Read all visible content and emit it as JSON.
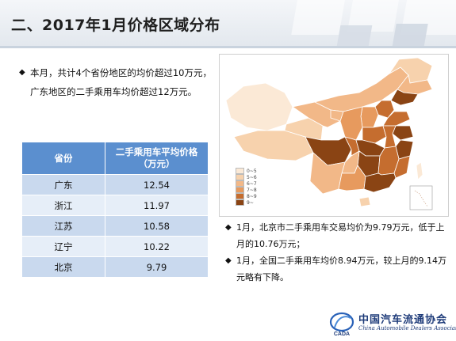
{
  "header": {
    "title": "二、2017年1月价格区域分布"
  },
  "left_bullet": "本月，共计4个省份地区的均价超过10万元，广东地区的二手乘用车均价超过12万元。",
  "table": {
    "headers": [
      "省份",
      "二手乘用车平均价格（万元）"
    ],
    "rows": [
      {
        "province": "广东",
        "price": "12.54"
      },
      {
        "province": "浙江",
        "price": "11.97"
      },
      {
        "province": "江苏",
        "price": "10.58"
      },
      {
        "province": "辽宁",
        "price": "10.22"
      },
      {
        "province": "北京",
        "price": "9.79"
      }
    ]
  },
  "map": {
    "legend": [
      {
        "label": "0~5",
        "color": "#fbe9d6"
      },
      {
        "label": "5~6",
        "color": "#f7d2ad"
      },
      {
        "label": "6~7",
        "color": "#f2b888"
      },
      {
        "label": "7~8",
        "color": "#e79a5e"
      },
      {
        "label": "8~9",
        "color": "#c56d2f"
      },
      {
        "label": "9~",
        "color": "#8a4414"
      }
    ]
  },
  "right_bullets": [
    "1月，北京市二手乘用车交易均价为9.79万元，低于上月的10.76万元；",
    "1月，全国二手乘用车均价8.94万元，较上月的9.14万元略有下降。"
  ],
  "logo": {
    "abbr": "CADA",
    "name_cn": "中国汽车流通协会",
    "name_en": "China Automobile Dealers Association"
  }
}
